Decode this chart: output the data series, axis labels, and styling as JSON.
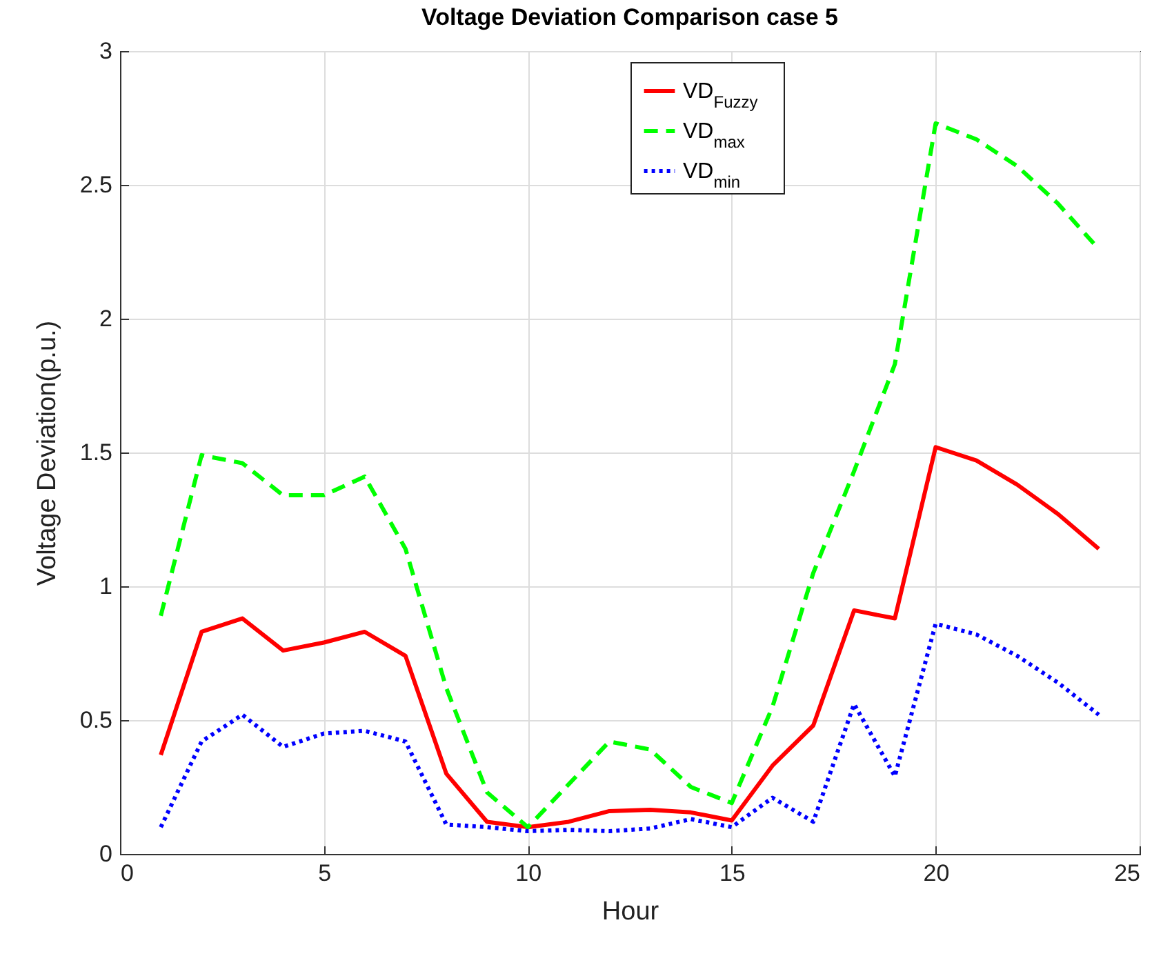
{
  "chart_data": {
    "type": "line",
    "title": "Voltage Deviation Comparison case 5",
    "xlabel": "Hour",
    "ylabel": "Voltage Deviation(p.u.)",
    "x": [
      1,
      2,
      3,
      4,
      5,
      6,
      7,
      8,
      9,
      10,
      11,
      12,
      13,
      14,
      15,
      16,
      17,
      18,
      19,
      20,
      21,
      22,
      23,
      24
    ],
    "series": [
      {
        "name": "VD$_{Fuzzy}$",
        "color": "#ff0000",
        "line_style": "solid",
        "values": [
          0.37,
          0.83,
          0.88,
          0.76,
          0.79,
          0.83,
          0.74,
          0.3,
          0.12,
          0.1,
          0.12,
          0.16,
          0.165,
          0.155,
          0.125,
          0.33,
          0.48,
          0.91,
          0.88,
          1.52,
          1.47,
          1.38,
          1.27,
          1.14
        ]
      },
      {
        "name": "VD$_{max}$",
        "color": "#00ff00",
        "line_style": "dashed",
        "values": [
          0.89,
          1.49,
          1.46,
          1.34,
          1.34,
          1.41,
          1.14,
          0.62,
          0.23,
          0.1,
          0.26,
          0.42,
          0.39,
          0.25,
          0.19,
          0.55,
          1.05,
          1.43,
          1.83,
          2.73,
          2.67,
          2.57,
          2.43,
          2.26
        ]
      },
      {
        "name": "VD$_{min}$",
        "color": "#0000ff",
        "line_style": "dotted",
        "values": [
          0.1,
          0.42,
          0.52,
          0.4,
          0.45,
          0.46,
          0.42,
          0.11,
          0.1,
          0.085,
          0.09,
          0.085,
          0.095,
          0.13,
          0.1,
          0.21,
          0.12,
          0.56,
          0.29,
          0.86,
          0.82,
          0.74,
          0.64,
          0.52
        ]
      }
    ],
    "xlim": [
      0,
      25
    ],
    "xticks": [
      0,
      5,
      10,
      15,
      20,
      25
    ],
    "ylim": [
      0,
      3
    ],
    "yticks": [
      0,
      0.5,
      1,
      1.5,
      2,
      2.5,
      3
    ],
    "grid": true,
    "legend": "top",
    "marker": "none"
  }
}
